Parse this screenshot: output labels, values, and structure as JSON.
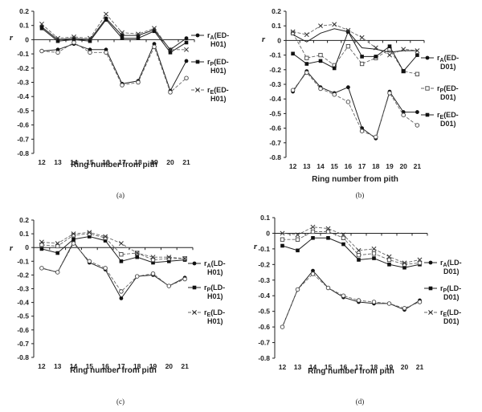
{
  "chart_data": [
    {
      "panel": "a",
      "type": "line",
      "caption": "(a)",
      "ylabel": "r",
      "xlabel": "Ring number from pith",
      "categories": [
        "12",
        "13",
        "14",
        "15",
        "16",
        "17",
        "18",
        "19",
        "20",
        "21"
      ],
      "ylim": [
        -0.8,
        0.2
      ],
      "yticks": [
        "0.2",
        "0.1",
        "0",
        "-0.1",
        "-0.2",
        "-0.3",
        "-0.4",
        "-0.5",
        "-0.6",
        "-0.7",
        "-0.8"
      ],
      "series": [
        {
          "name": "rA(ED-H01)",
          "sub": "A",
          "text": "(ED-",
          "text2": "H01)",
          "marker": "circle",
          "dash": false,
          "values": [
            -0.08,
            -0.07,
            -0.03,
            -0.07,
            -0.07,
            -0.31,
            -0.29,
            -0.03,
            -0.36,
            -0.15
          ]
        },
        {
          "name": "rA(ED-H01) upper",
          "sub": "",
          "text": "",
          "text2": "",
          "marker": "circle",
          "dash": false,
          "values": [
            0.09,
            0.0,
            0.01,
            0.0,
            0.15,
            0.03,
            0.03,
            0.07,
            -0.07,
            0.01
          ]
        },
        {
          "name": "rP(ED-H01)",
          "sub": "P",
          "text": "(ED-",
          "text2": "H01)",
          "marker": "square",
          "dash": false,
          "values": [
            0.08,
            -0.01,
            0.0,
            -0.01,
            0.14,
            0.01,
            0.01,
            0.06,
            -0.09,
            -0.02
          ]
        },
        {
          "name": "rE(ED-H01)",
          "sub": "E",
          "text": "(ED-",
          "text2": "H01)",
          "marker": "cross",
          "dash": true,
          "values": [
            0.11,
            0.01,
            0.02,
            0.01,
            0.18,
            0.05,
            0.04,
            0.08,
            -0.07,
            -0.07
          ]
        },
        {
          "name": "rP(ED-H01) lower",
          "sub": "",
          "text": "",
          "text2": "",
          "marker": "open",
          "dash": true,
          "values": [
            -0.08,
            -0.09,
            -0.02,
            -0.09,
            -0.09,
            -0.32,
            -0.3,
            -0.05,
            -0.37,
            -0.27
          ]
        }
      ]
    },
    {
      "panel": "b",
      "type": "line",
      "caption": "(b)",
      "ylabel": "r",
      "xlabel": "Ring number from pith",
      "categories": [
        "12",
        "13",
        "14",
        "15",
        "16",
        "17",
        "18",
        "19",
        "20",
        "21"
      ],
      "ylim": [
        -0.8,
        0.2
      ],
      "yticks": [
        "0.2",
        "0.1",
        "0",
        "-0.1",
        "-0.2",
        "-0.3",
        "-0.4",
        "-0.5",
        "-0.6",
        "-0.7",
        "-0.8"
      ],
      "series": [
        {
          "name": "rA(ED-D01)",
          "sub": "A",
          "text": "(ED-",
          "text2": "D01)",
          "marker": "circle",
          "dash": false,
          "values": [
            -0.35,
            -0.21,
            -0.32,
            -0.36,
            -0.32,
            -0.6,
            -0.67,
            -0.35,
            -0.49,
            -0.49
          ]
        },
        {
          "name": "rP(ED-D01)",
          "sub": "P",
          "text": "(ED-",
          "text2": "D01)",
          "marker": "open-square",
          "dash": true,
          "values": [
            0.05,
            -0.12,
            -0.1,
            -0.17,
            -0.04,
            -0.16,
            -0.12,
            -0.06,
            -0.21,
            -0.23
          ]
        },
        {
          "name": "rE(ED-D01)",
          "sub": "E",
          "text": "(ED-",
          "text2": "D01)",
          "marker": "square",
          "dash": false,
          "values": [
            -0.09,
            -0.16,
            -0.14,
            -0.19,
            0.06,
            -0.11,
            -0.11,
            -0.04,
            -0.21,
            -0.1
          ]
        },
        {
          "name": "rE(ED-D01) upper",
          "sub": "",
          "text": "",
          "text2": "",
          "marker": "cross",
          "dash": true,
          "values": [
            0.06,
            0.04,
            0.1,
            0.11,
            0.07,
            0.02,
            -0.05,
            -0.1,
            -0.06,
            -0.07
          ]
        },
        {
          "name": "rA(ED-D01) mid",
          "sub": "",
          "text": "",
          "text2": "",
          "marker": "none",
          "dash": false,
          "values": [
            0.04,
            -0.01,
            0.05,
            0.08,
            0.06,
            -0.05,
            -0.06,
            -0.08,
            -0.07,
            -0.07
          ]
        },
        {
          "name": "rA(ED-D01) lower",
          "sub": "",
          "text": "",
          "text2": "",
          "marker": "open",
          "dash": true,
          "values": [
            -0.34,
            -0.22,
            -0.33,
            -0.37,
            -0.42,
            -0.62,
            -0.66,
            -0.36,
            -0.51,
            -0.58
          ]
        }
      ]
    },
    {
      "panel": "c",
      "type": "line",
      "caption": "(c)",
      "ylabel": "r",
      "xlabel": "Ring number from pith",
      "categories": [
        "12",
        "13",
        "14",
        "15",
        "16",
        "17",
        "18",
        "19",
        "20",
        "21"
      ],
      "ylim": [
        -0.8,
        0.2
      ],
      "yticks": [
        "0.2",
        "0.1",
        "0",
        "-0.1",
        "-0.2",
        "-0.3",
        "-0.4",
        "-0.5",
        "-0.6",
        "-0.7",
        "-0.8"
      ],
      "series": [
        {
          "name": "rA(LD-H01)",
          "sub": "A",
          "text": "(LD-",
          "text2": "H01)",
          "marker": "circle",
          "dash": false,
          "values": [
            -0.15,
            -0.18,
            0.04,
            -0.11,
            -0.16,
            -0.37,
            -0.21,
            -0.2,
            -0.28,
            -0.22
          ]
        },
        {
          "name": "rA(LD-H01) lower",
          "sub": "",
          "text": "",
          "text2": "",
          "marker": "open",
          "dash": true,
          "values": [
            -0.15,
            -0.18,
            0.03,
            -0.1,
            -0.15,
            -0.32,
            -0.21,
            -0.19,
            -0.28,
            -0.23
          ]
        },
        {
          "name": "rP(LD-H01)",
          "sub": "P",
          "text": "(LD-",
          "text2": "H01)",
          "marker": "square",
          "dash": false,
          "values": [
            -0.01,
            -0.04,
            0.06,
            0.08,
            0.05,
            -0.1,
            -0.07,
            -0.11,
            -0.1,
            -0.09
          ]
        },
        {
          "name": "rP(LD-H01) open",
          "sub": "",
          "text": "",
          "text2": "",
          "marker": "open-square",
          "dash": true,
          "values": [
            0.02,
            0.01,
            0.09,
            0.1,
            0.07,
            -0.05,
            -0.04,
            -0.09,
            -0.08,
            -0.08
          ]
        },
        {
          "name": "rE(LD-H01)",
          "sub": "E",
          "text": "(LD-",
          "text2": "H01)",
          "marker": "cross",
          "dash": true,
          "values": [
            0.04,
            0.03,
            0.1,
            0.11,
            0.08,
            0.03,
            -0.04,
            -0.07,
            -0.07,
            -0.08
          ]
        }
      ]
    },
    {
      "panel": "d",
      "type": "line",
      "caption": "(d)",
      "ylabel": "r",
      "xlabel": "Ring number from pith",
      "categories": [
        "12",
        "13",
        "14",
        "15",
        "16",
        "17",
        "18",
        "19",
        "20",
        "21"
      ],
      "ylim": [
        -0.8,
        0.1
      ],
      "yticks": [
        "0.1",
        "0",
        "-0.1",
        "-0.2",
        "-0.3",
        "-0.4",
        "-0.5",
        "-0.6",
        "-0.7",
        "-0.8"
      ],
      "series": [
        {
          "name": "rA(LD-D01)",
          "sub": "A",
          "text": "(LD-",
          "text2": "D01)",
          "marker": "circle",
          "dash": false,
          "values": [
            -0.6,
            -0.36,
            -0.24,
            -0.35,
            -0.41,
            -0.44,
            -0.45,
            -0.45,
            -0.49,
            -0.43
          ]
        },
        {
          "name": "rA(LD-D01) open",
          "sub": "",
          "text": "",
          "text2": "",
          "marker": "open",
          "dash": true,
          "values": [
            -0.6,
            -0.36,
            -0.26,
            -0.35,
            -0.4,
            -0.43,
            -0.44,
            -0.45,
            -0.48,
            -0.44
          ]
        },
        {
          "name": "rP(LD-D01)",
          "sub": "P",
          "text": "(LD-",
          "text2": "D01)",
          "marker": "square",
          "dash": false,
          "values": [
            -0.08,
            -0.11,
            -0.03,
            -0.03,
            -0.07,
            -0.17,
            -0.16,
            -0.2,
            -0.22,
            -0.2
          ]
        },
        {
          "name": "rP(LD-D01) open",
          "sub": "",
          "text": "",
          "text2": "",
          "marker": "open-square",
          "dash": true,
          "values": [
            -0.04,
            -0.04,
            0.01,
            0.01,
            -0.03,
            -0.14,
            -0.13,
            -0.17,
            -0.2,
            -0.19
          ]
        },
        {
          "name": "rE(LD-D01)",
          "sub": "E",
          "text": "(LD-",
          "text2": "D01)",
          "marker": "cross",
          "dash": true,
          "values": [
            0.0,
            -0.01,
            0.04,
            0.03,
            -0.01,
            -0.11,
            -0.1,
            -0.15,
            -0.19,
            -0.17
          ]
        }
      ]
    }
  ]
}
